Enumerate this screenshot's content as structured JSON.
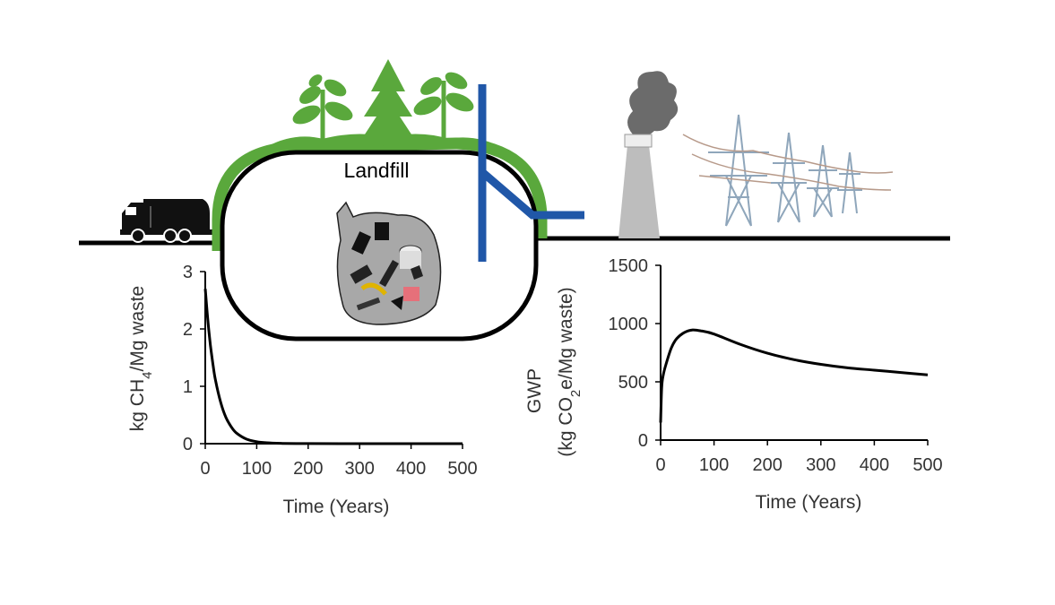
{
  "diagram": {
    "landfill_label": "Landfill",
    "colors": {
      "ground": "#000000",
      "grass": "#5aa83c",
      "pipe": "#2057a8",
      "stack": "#bdbdbd",
      "smoke": "#6b6b6b",
      "bag": "#a8a8a8",
      "tower": "#9fb4c8"
    },
    "icons": [
      "garbage-truck-icon",
      "tree-icon",
      "sprout-icon",
      "trash-bag-icon",
      "smokestack-icon",
      "power-tower-icon",
      "gas-pipe-icon"
    ]
  },
  "chart_data": [
    {
      "type": "line",
      "name": "methane-emissions",
      "xlabel": "Time (Years)",
      "ylabel": "kg CH4/Mg waste",
      "ylabel_main": "kg CH",
      "ylabel_sub": "4",
      "ylabel_tail": "/Mg waste",
      "xlim": [
        0,
        500
      ],
      "ylim": [
        0,
        3
      ],
      "xticks": [
        "0",
        "100",
        "200",
        "300",
        "400",
        "500"
      ],
      "yticks": [
        "0",
        "1",
        "2",
        "3"
      ],
      "series": [
        {
          "x": [
            0,
            5,
            10,
            15,
            20,
            30,
            40,
            50,
            60,
            80,
            100,
            120,
            150,
            200,
            300,
            400,
            500
          ],
          "y": [
            2.7,
            2.15,
            1.72,
            1.38,
            1.1,
            0.72,
            0.46,
            0.3,
            0.19,
            0.08,
            0.035,
            0.015,
            0.005,
            0.001,
            0,
            0,
            0
          ]
        }
      ]
    },
    {
      "type": "line",
      "name": "gwp",
      "xlabel": "Time (Years)",
      "ylabel_line1": "GWP",
      "ylabel_line2_main": "(kg CO",
      "ylabel_line2_sub": "2",
      "ylabel_line2_tail": "e/Mg waste)",
      "xlim": [
        0,
        500
      ],
      "ylim": [
        0,
        1500
      ],
      "xticks": [
        "0",
        "100",
        "200",
        "300",
        "400",
        "500"
      ],
      "yticks": [
        "0",
        "500",
        "1000",
        "1500"
      ],
      "series": [
        {
          "x": [
            0,
            2,
            5,
            10,
            20,
            30,
            45,
            60,
            75,
            100,
            150,
            200,
            250,
            300,
            350,
            400,
            450,
            500
          ],
          "y": [
            150,
            450,
            560,
            650,
            790,
            870,
            925,
            945,
            938,
            910,
            820,
            745,
            690,
            650,
            620,
            600,
            580,
            560
          ]
        }
      ]
    }
  ]
}
